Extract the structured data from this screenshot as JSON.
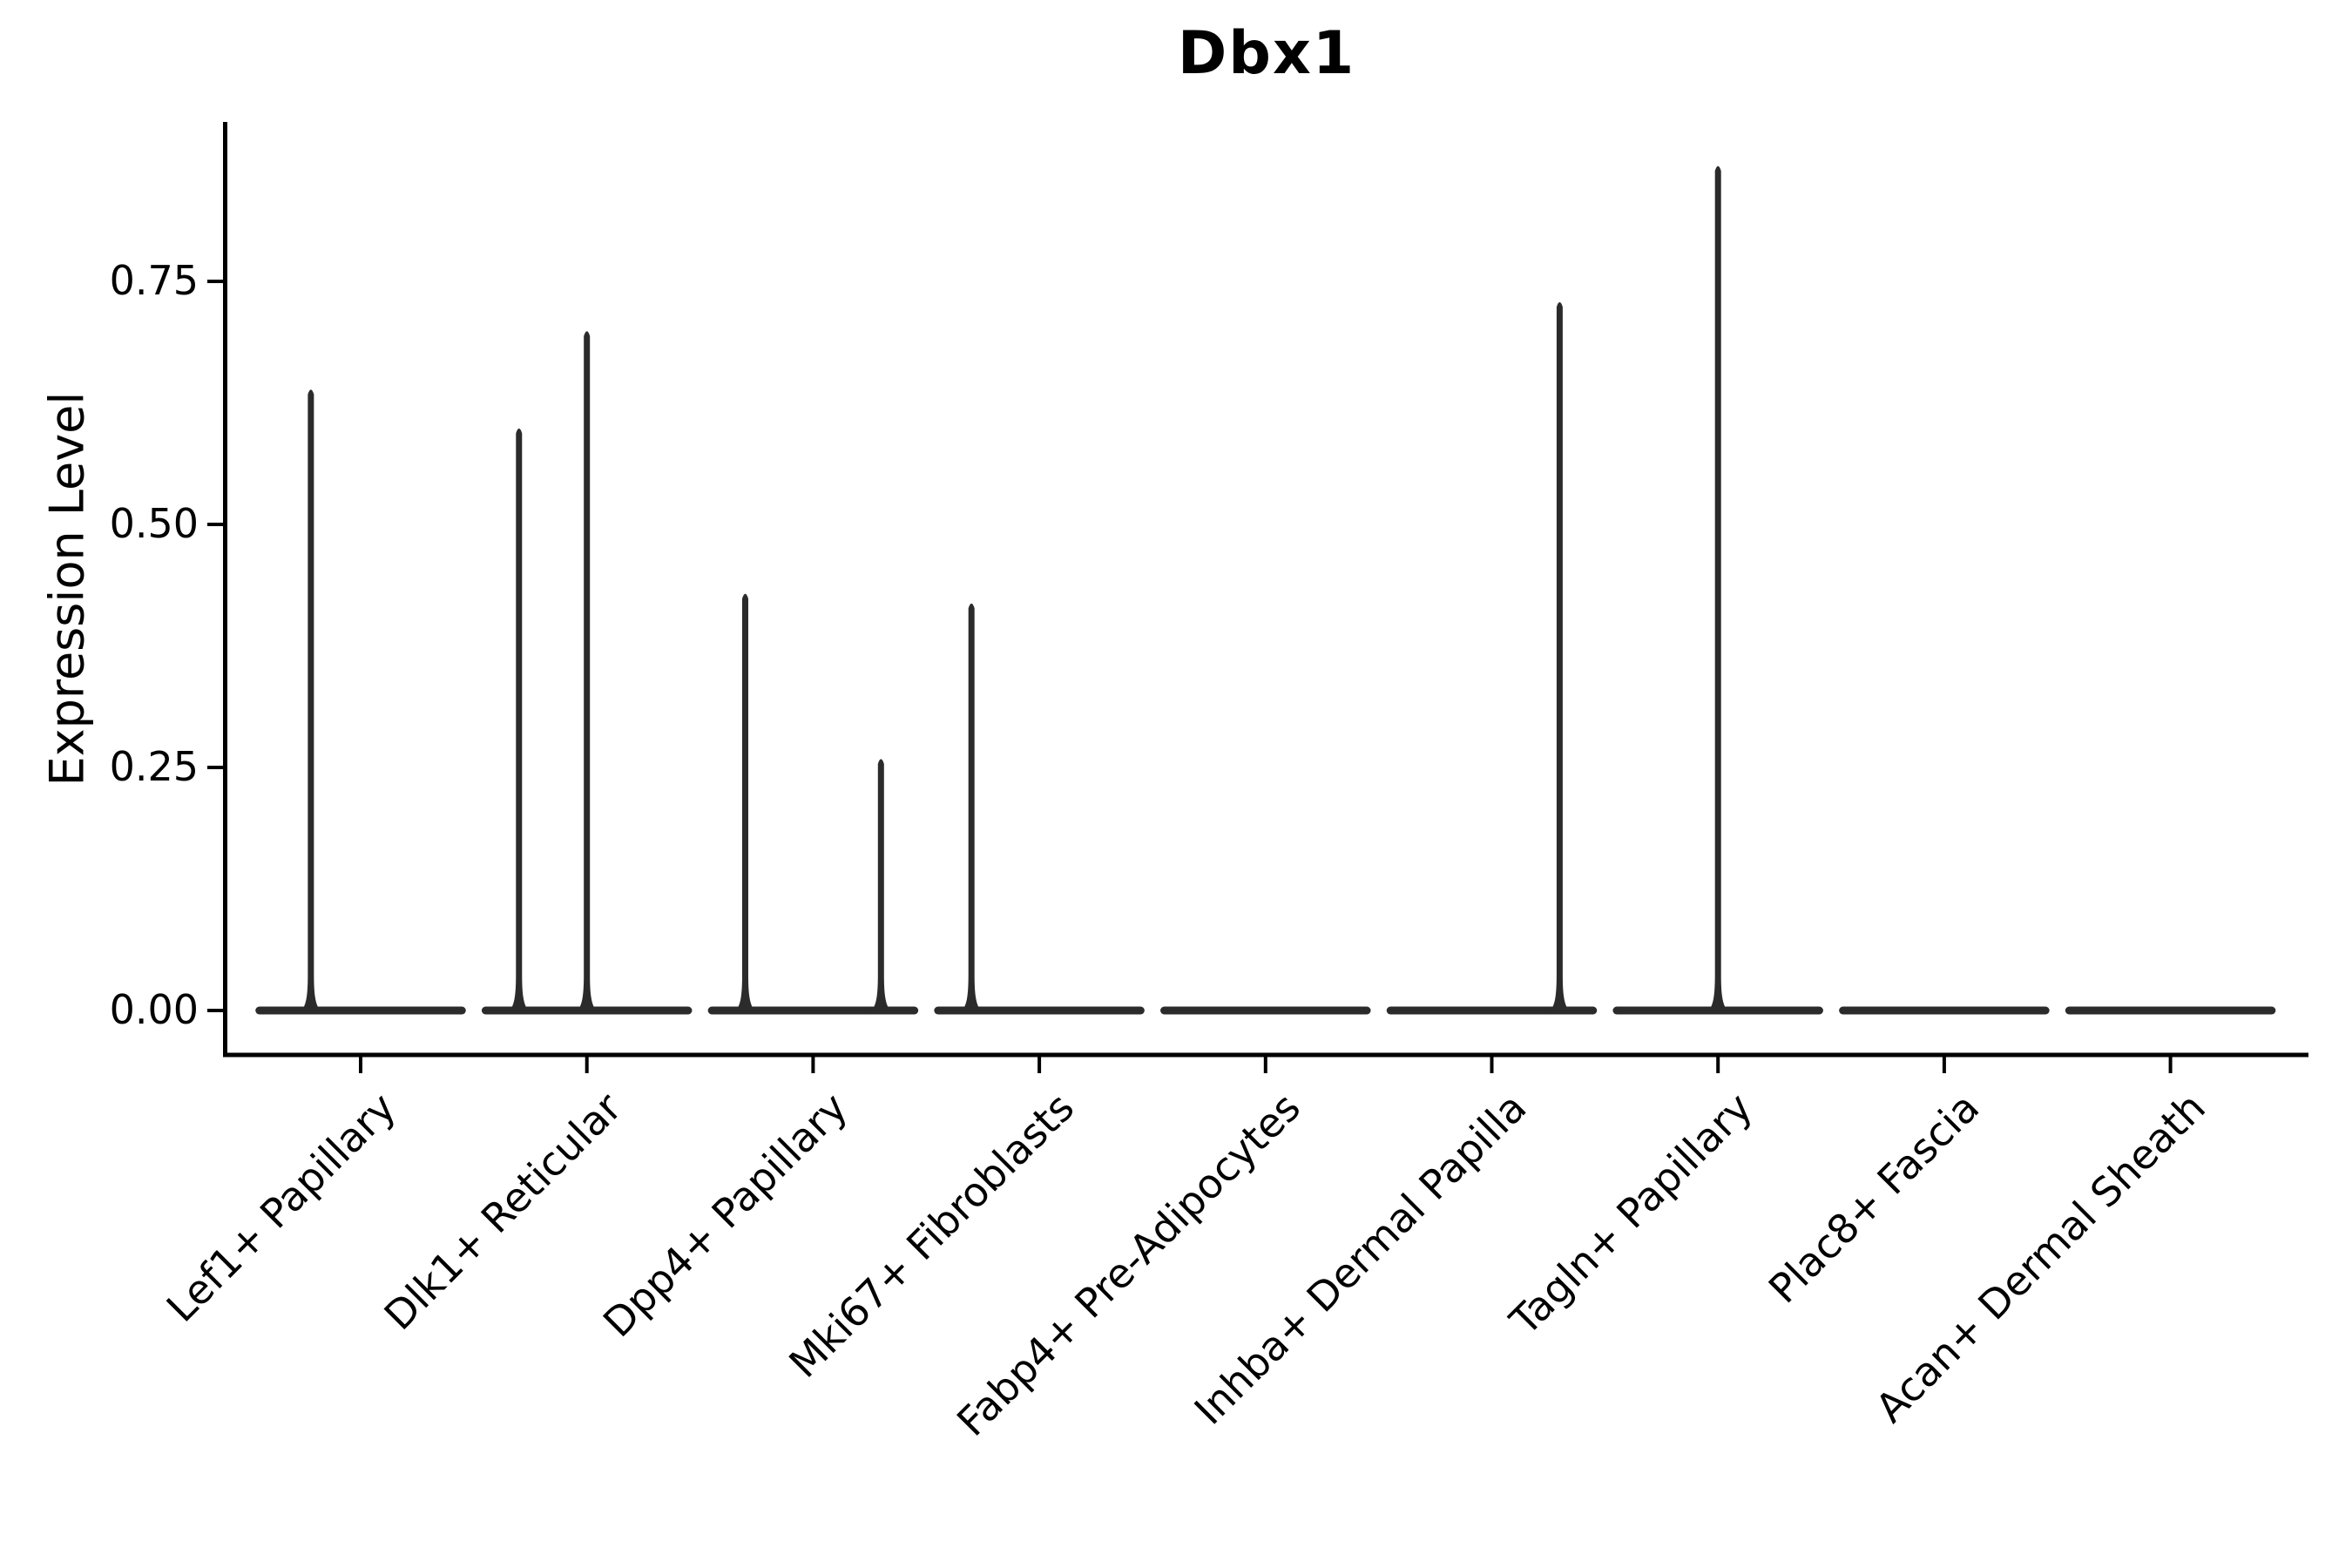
{
  "chart_data": {
    "type": "violin",
    "title": "Dbx1",
    "ylabel": "Expression Level",
    "xlabel": "",
    "ytick_values": [
      0,
      0.25,
      0.5,
      0.75
    ],
    "ytick_label_format": "2dp",
    "ylim": [
      0,
      0.914
    ],
    "grid": false,
    "legend": null,
    "categories": [
      "Lef1+ Papillary",
      "Dlk1+ Reticular",
      "Dpp4+ Papillary",
      "Mki67+ Fibroblasts",
      "Fabp4+ Pre-Adipocytes",
      "Inhba+ Dermal Papilla",
      "Tagln+ Papillary",
      "Plac8+ Fascia",
      "Acan+ Dermal Sheath"
    ],
    "violin_width_frac": 0.93,
    "violins": [
      {
        "category": "Lef1+ Papillary",
        "baseline_value": 0,
        "spikes": [
          {
            "x_offset_frac": -0.22,
            "max_value": 0.64
          }
        ]
      },
      {
        "category": "Dlk1+ Reticular",
        "baseline_value": 0,
        "spikes": [
          {
            "x_offset_frac": -0.3,
            "max_value": 0.6
          },
          {
            "x_offset_frac": 0.0,
            "max_value": 0.7
          }
        ]
      },
      {
        "category": "Dpp4+ Papillary",
        "baseline_value": 0,
        "spikes": [
          {
            "x_offset_frac": -0.3,
            "max_value": 0.43
          },
          {
            "x_offset_frac": 0.3,
            "max_value": 0.26
          }
        ]
      },
      {
        "category": "Mki67+ Fibroblasts",
        "baseline_value": 0,
        "spikes": [
          {
            "x_offset_frac": -0.3,
            "max_value": 0.42
          }
        ]
      },
      {
        "category": "Fabp4+ Pre-Adipocytes",
        "baseline_value": 0,
        "spikes": []
      },
      {
        "category": "Inhba+ Dermal Papilla",
        "baseline_value": 0,
        "spikes": [
          {
            "x_offset_frac": 0.3,
            "max_value": 0.73
          }
        ]
      },
      {
        "category": "Tagln+ Papillary",
        "baseline_value": 0,
        "spikes": [
          {
            "x_offset_frac": 0.0,
            "max_value": 0.87
          }
        ]
      },
      {
        "category": "Plac8+ Fascia",
        "baseline_value": 0,
        "spikes": []
      },
      {
        "category": "Acan+ Dermal Sheath",
        "baseline_value": 0,
        "spikes": []
      }
    ],
    "colors": {
      "background": "#ffffff",
      "axis": "#000000",
      "text": "#000000",
      "violin": "#2b2b2b"
    }
  }
}
